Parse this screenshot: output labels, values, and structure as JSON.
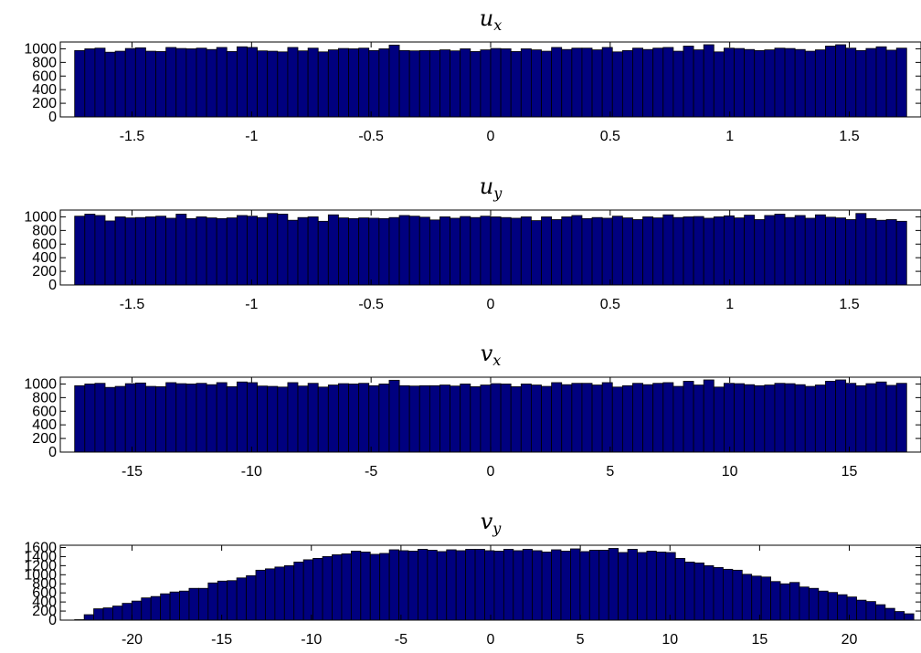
{
  "chart_data": [
    {
      "type": "bar",
      "title": "u",
      "title_subscript": "x",
      "bar_color": "#00007f",
      "bin_range": [
        -1.74,
        1.74
      ],
      "xlim": [
        -1.8,
        1.8
      ],
      "ylim": [
        0,
        1100
      ],
      "xticks": [
        -1.5,
        -1,
        -0.5,
        0,
        0.5,
        1,
        1.5
      ],
      "xtick_labels": [
        "-1.5",
        "-1",
        "-0.5",
        "0",
        "0.5",
        "1",
        "1.5"
      ],
      "yticks": [
        0,
        200,
        400,
        600,
        800,
        1000
      ],
      "ytick_labels": [
        "0",
        "200",
        "400",
        "600",
        "800",
        "1000"
      ],
      "values": [
        975,
        1000,
        1010,
        950,
        965,
        1005,
        1015,
        965,
        960,
        1020,
        1005,
        1000,
        1010,
        990,
        1020,
        960,
        1030,
        1020,
        970,
        965,
        955,
        1020,
        970,
        1010,
        955,
        985,
        1005,
        1000,
        1010,
        975,
        1000,
        1055,
        975,
        970,
        975,
        975,
        985,
        970,
        1000,
        960,
        985,
        1005,
        1000,
        960,
        1000,
        985,
        965,
        1020,
        990,
        1010,
        1010,
        985,
        1020,
        955,
        975,
        1010,
        990,
        1010,
        1020,
        965,
        1040,
        985,
        1060,
        955,
        1010,
        1005,
        990,
        975,
        985,
        1010,
        1005,
        990,
        965,
        985,
        1040,
        1060,
        1010,
        975,
        1005,
        1030,
        980,
        1010
      ]
    },
    {
      "type": "bar",
      "title": "u",
      "title_subscript": "y",
      "bar_color": "#00007f",
      "bin_range": [
        -1.74,
        1.74
      ],
      "xlim": [
        -1.8,
        1.8
      ],
      "ylim": [
        0,
        1100
      ],
      "xticks": [
        -1.5,
        -1,
        -0.5,
        0,
        0.5,
        1,
        1.5
      ],
      "xtick_labels": [
        "-1.5",
        "-1",
        "-0.5",
        "0",
        "0.5",
        "1",
        "1.5"
      ],
      "yticks": [
        0,
        200,
        400,
        600,
        800,
        1000
      ],
      "ytick_labels": [
        "0",
        "200",
        "400",
        "600",
        "800",
        "1000"
      ],
      "values": [
        1010,
        1040,
        1020,
        940,
        1000,
        985,
        990,
        1000,
        1010,
        980,
        1040,
        975,
        1000,
        985,
        975,
        985,
        1020,
        1010,
        990,
        1050,
        1040,
        950,
        990,
        1000,
        935,
        1030,
        985,
        975,
        985,
        980,
        975,
        990,
        1020,
        1010,
        995,
        955,
        1000,
        980,
        1005,
        990,
        1010,
        1000,
        990,
        980,
        1000,
        945,
        1000,
        960,
        1000,
        1020,
        975,
        990,
        980,
        1010,
        985,
        960,
        1000,
        985,
        1030,
        990,
        1000,
        1005,
        980,
        1000,
        1015,
        985,
        1025,
        960,
        1020,
        1040,
        990,
        1020,
        980,
        1030,
        995,
        985,
        960,
        1050,
        975,
        950,
        960,
        935
      ]
    },
    {
      "type": "bar",
      "title": "v",
      "title_subscript": "x",
      "bar_color": "#00007f",
      "bin_range": [
        -17.4,
        17.4
      ],
      "xlim": [
        -18,
        18
      ],
      "ylim": [
        0,
        1100
      ],
      "xticks": [
        -15,
        -10,
        -5,
        0,
        5,
        10,
        15
      ],
      "xtick_labels": [
        "-15",
        "-10",
        "-5",
        "0",
        "5",
        "10",
        "15"
      ],
      "yticks": [
        0,
        200,
        400,
        600,
        800,
        1000
      ],
      "ytick_labels": [
        "0",
        "200",
        "400",
        "600",
        "800",
        "1000"
      ],
      "values": [
        975,
        1000,
        1010,
        950,
        965,
        1005,
        1015,
        965,
        960,
        1020,
        1005,
        1000,
        1010,
        990,
        1020,
        960,
        1030,
        1020,
        970,
        965,
        955,
        1020,
        970,
        1010,
        955,
        985,
        1005,
        1000,
        1010,
        975,
        1000,
        1055,
        975,
        970,
        975,
        975,
        985,
        970,
        1000,
        960,
        985,
        1005,
        1000,
        960,
        1000,
        985,
        965,
        1020,
        990,
        1010,
        1010,
        985,
        1020,
        955,
        975,
        1010,
        990,
        1010,
        1020,
        965,
        1040,
        985,
        1060,
        955,
        1010,
        1005,
        990,
        975,
        985,
        1010,
        1005,
        990,
        965,
        985,
        1040,
        1060,
        1010,
        975,
        1005,
        1030,
        980,
        1010
      ]
    },
    {
      "type": "bar",
      "title": "v",
      "title_subscript": "y",
      "bar_color": "#00007f",
      "bin_range": [
        -23.2,
        23.6
      ],
      "xlim": [
        -24,
        24
      ],
      "ylim": [
        0,
        1650
      ],
      "xticks": [
        -20,
        -15,
        -10,
        -5,
        0,
        5,
        10,
        15,
        20
      ],
      "xtick_labels": [
        "-20",
        "-15",
        "-10",
        "-5",
        "0",
        "5",
        "10",
        "15",
        "20"
      ],
      "yticks": [
        0,
        200,
        400,
        600,
        800,
        1000,
        1200,
        1400,
        1600
      ],
      "ytick_labels": [
        "0",
        "200",
        "400",
        "600",
        "800",
        "1000",
        "1200",
        "1400",
        "1600"
      ],
      "values": [
        10,
        120,
        250,
        270,
        310,
        370,
        420,
        490,
        520,
        580,
        620,
        640,
        700,
        700,
        820,
        860,
        870,
        930,
        980,
        1100,
        1130,
        1170,
        1200,
        1280,
        1330,
        1360,
        1400,
        1440,
        1460,
        1520,
        1500,
        1450,
        1470,
        1550,
        1530,
        1520,
        1560,
        1540,
        1510,
        1550,
        1530,
        1560,
        1560,
        1530,
        1520,
        1560,
        1530,
        1560,
        1530,
        1500,
        1550,
        1520,
        1570,
        1510,
        1540,
        1540,
        1580,
        1490,
        1560,
        1490,
        1520,
        1500,
        1490,
        1360,
        1280,
        1260,
        1200,
        1160,
        1120,
        1100,
        1010,
        970,
        950,
        850,
        800,
        830,
        730,
        700,
        640,
        610,
        560,
        510,
        440,
        410,
        340,
        260,
        190,
        140
      ]
    }
  ]
}
